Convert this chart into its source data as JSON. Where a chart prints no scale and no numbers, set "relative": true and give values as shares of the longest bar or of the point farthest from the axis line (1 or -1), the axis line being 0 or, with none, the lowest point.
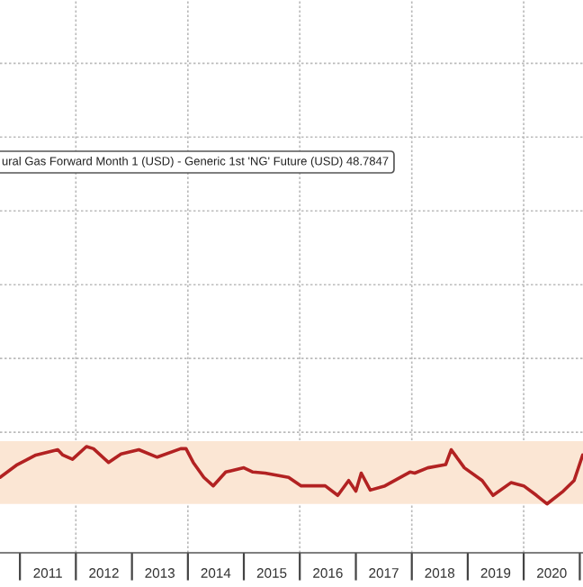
{
  "chart_data": {
    "type": "line",
    "relative": true,
    "x": [
      "2010-08-24",
      "2010-12-15",
      "2011-04-15",
      "2011-09-05",
      "2011-10-08",
      "2011-12-10",
      "2012-03-10",
      "2012-04-25",
      "2012-08-01",
      "2012-10-22",
      "2013-02-15",
      "2013-06-15",
      "2013-11-15",
      "2013-12-20",
      "2014-02-05",
      "2014-04-15",
      "2014-06-15",
      "2014-09-05",
      "2015-01-01",
      "2015-03-01",
      "2015-05-20",
      "2015-10-20",
      "2016-01-10",
      "2016-06-15",
      "2016-09-05",
      "2016-11-15",
      "2017-01-01",
      "2017-02-05",
      "2017-04-05",
      "2017-07-10",
      "2017-12-20",
      "2018-01-20",
      "2018-04-15",
      "2018-08-10",
      "2018-09-15",
      "2018-12-10",
      "2019-04-05",
      "2019-06-15",
      "2019-10-10",
      "2020-01-01",
      "2020-03-25",
      "2020-06-01",
      "2020-09-15",
      "2020-11-25",
      "2021-01-20"
    ],
    "series": [
      {
        "color": "#b22222",
        "values": [
          0.71,
          0.83,
          0.92,
          0.97,
          0.92,
          0.88,
          1.0,
          0.98,
          0.85,
          0.93,
          0.97,
          0.9,
          0.98,
          0.98,
          0.85,
          0.71,
          0.63,
          0.76,
          0.8,
          0.76,
          0.75,
          0.71,
          0.63,
          0.63,
          0.54,
          0.68,
          0.58,
          0.75,
          0.59,
          0.63,
          0.76,
          0.75,
          0.8,
          0.83,
          0.97,
          0.8,
          0.68,
          0.54,
          0.66,
          0.63,
          0.54,
          0.46,
          0.58,
          0.68,
          0.92
        ]
      }
    ],
    "xlim": [
      "2010-08-24",
      "2021-01-22"
    ],
    "xticks": [
      {
        "value": "2011-01-01",
        "label": null
      },
      {
        "value": "2011-07-02",
        "label": "2011"
      },
      {
        "value": "2012-01-01",
        "label": null
      },
      {
        "value": "2012-07-02",
        "label": "2012"
      },
      {
        "value": "2013-01-01",
        "label": null
      },
      {
        "value": "2013-07-02",
        "label": "2013"
      },
      {
        "value": "2014-01-01",
        "label": null
      },
      {
        "value": "2014-07-02",
        "label": "2014"
      },
      {
        "value": "2015-01-01",
        "label": null
      },
      {
        "value": "2015-07-02",
        "label": "2015"
      },
      {
        "value": "2016-01-01",
        "label": null
      },
      {
        "value": "2016-07-02",
        "label": "2016"
      },
      {
        "value": "2017-01-01",
        "label": null
      },
      {
        "value": "2017-07-02",
        "label": "2017"
      },
      {
        "value": "2018-01-01",
        "label": null
      },
      {
        "value": "2018-07-02",
        "label": "2018"
      },
      {
        "value": "2019-01-01",
        "label": null
      },
      {
        "value": "2019-07-02",
        "label": "2019"
      },
      {
        "value": "2020-01-01",
        "label": null
      },
      {
        "value": "2020-07-02",
        "label": "2020"
      },
      {
        "value": "2021-01-01",
        "label": null
      }
    ],
    "bands": [
      {
        "axis": "y",
        "from": 0.46,
        "to": 1.05,
        "color": "#fbe6d4"
      }
    ],
    "annotations": [
      "ural Gas Forward Month 1 (USD) - Generic 1st 'NG' Future (USD) 48.7847"
    ],
    "grid": true,
    "line_style": "solid",
    "marker": "none"
  }
}
